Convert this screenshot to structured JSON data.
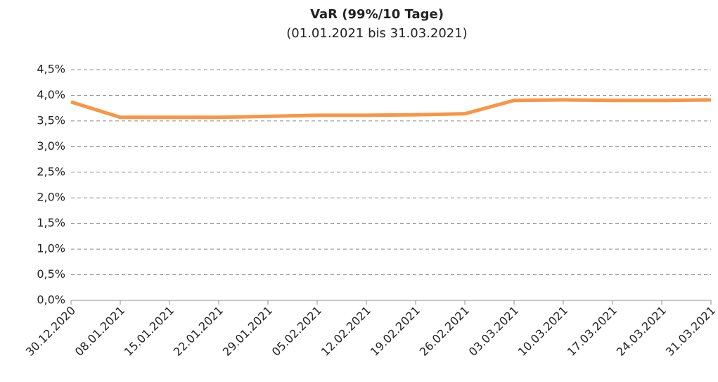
{
  "chart_data": {
    "type": "line",
    "title": "VaR (99%/10 Tage)",
    "subtitle": "(01.01.2021 bis 31.03.2021)",
    "categories": [
      "30.12.2020",
      "08.01.2021",
      "15.01.2021",
      "22.01.2021",
      "29.01.2021",
      "05.02.2021",
      "12.02.2021",
      "19.02.2021",
      "26.02.2021",
      "03.03.2021",
      "10.03.2021",
      "17.03.2021",
      "24.03.2021",
      "31.03.2021"
    ],
    "series": [
      {
        "color": "#f79646",
        "values": [
          3.87,
          3.57,
          3.57,
          3.57,
          3.59,
          3.61,
          3.61,
          3.62,
          3.64,
          3.9,
          3.91,
          3.9,
          3.9,
          3.91
        ]
      }
    ],
    "ylim": [
      0,
      4.5
    ],
    "yticks": [
      {
        "value": 0,
        "label": "0,0%"
      },
      {
        "value": 0.5,
        "label": "0,5%"
      },
      {
        "value": 1,
        "label": "1,0%"
      },
      {
        "value": 1.5,
        "label": "1,5%"
      },
      {
        "value": 2,
        "label": "2,0%"
      },
      {
        "value": 2.5,
        "label": "2,5%"
      },
      {
        "value": 3,
        "label": "3,0%"
      },
      {
        "value": 3.5,
        "label": "3,5%"
      },
      {
        "value": 4,
        "label": "4,0%"
      },
      {
        "value": 4.5,
        "label": "4,5%"
      }
    ],
    "grid": true
  }
}
